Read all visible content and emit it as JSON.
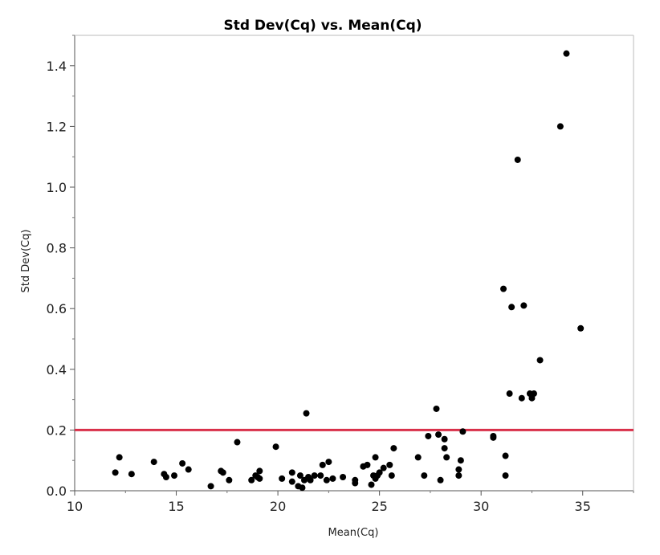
{
  "chart_data": {
    "type": "scatter",
    "title": "Std Dev(Cq) vs. Mean(Cq)",
    "xlabel": "Mean(Cq)",
    "ylabel": "Std Dev(Cq)",
    "xlim": [
      10,
      37.5
    ],
    "ylim": [
      0,
      1.5
    ],
    "x_ticks": [
      "10",
      "15",
      "20",
      "25",
      "30",
      "35"
    ],
    "y_ticks": [
      "0.0",
      "0.2",
      "0.4",
      "0.6",
      "0.8",
      "1.0",
      "1.2",
      "1.4"
    ],
    "reference_line": {
      "y": 0.2,
      "color": "#d9304a"
    },
    "point_color": "#000000",
    "grid": false,
    "points": [
      [
        12.0,
        0.06
      ],
      [
        12.2,
        0.11
      ],
      [
        12.8,
        0.055
      ],
      [
        13.9,
        0.095
      ],
      [
        14.4,
        0.055
      ],
      [
        14.5,
        0.045
      ],
      [
        14.9,
        0.05
      ],
      [
        15.3,
        0.09
      ],
      [
        15.6,
        0.07
      ],
      [
        16.7,
        0.015
      ],
      [
        17.2,
        0.065
      ],
      [
        17.3,
        0.06
      ],
      [
        17.6,
        0.035
      ],
      [
        18.0,
        0.16
      ],
      [
        18.7,
        0.035
      ],
      [
        18.9,
        0.05
      ],
      [
        19.0,
        0.045
      ],
      [
        19.1,
        0.065
      ],
      [
        19.1,
        0.04
      ],
      [
        19.9,
        0.145
      ],
      [
        20.2,
        0.04
      ],
      [
        20.7,
        0.06
      ],
      [
        20.7,
        0.03
      ],
      [
        21.0,
        0.015
      ],
      [
        21.1,
        0.05
      ],
      [
        21.2,
        0.01
      ],
      [
        21.3,
        0.035
      ],
      [
        21.4,
        0.255
      ],
      [
        21.5,
        0.045
      ],
      [
        21.6,
        0.035
      ],
      [
        21.8,
        0.05
      ],
      [
        22.1,
        0.05
      ],
      [
        22.2,
        0.085
      ],
      [
        22.4,
        0.035
      ],
      [
        22.5,
        0.095
      ],
      [
        22.7,
        0.04
      ],
      [
        23.2,
        0.045
      ],
      [
        23.8,
        0.035
      ],
      [
        23.8,
        0.025
      ],
      [
        24.2,
        0.08
      ],
      [
        24.4,
        0.085
      ],
      [
        24.6,
        0.02
      ],
      [
        24.7,
        0.05
      ],
      [
        24.8,
        0.04
      ],
      [
        24.8,
        0.11
      ],
      [
        24.9,
        0.05
      ],
      [
        25.0,
        0.06
      ],
      [
        25.2,
        0.075
      ],
      [
        25.5,
        0.085
      ],
      [
        25.6,
        0.05
      ],
      [
        25.7,
        0.14
      ],
      [
        26.9,
        0.11
      ],
      [
        27.2,
        0.05
      ],
      [
        27.4,
        0.18
      ],
      [
        27.8,
        0.27
      ],
      [
        27.9,
        0.185
      ],
      [
        28.0,
        0.035
      ],
      [
        28.2,
        0.14
      ],
      [
        28.2,
        0.17
      ],
      [
        28.3,
        0.11
      ],
      [
        28.9,
        0.05
      ],
      [
        28.9,
        0.07
      ],
      [
        29.0,
        0.1
      ],
      [
        29.1,
        0.195
      ],
      [
        30.6,
        0.18
      ],
      [
        30.6,
        0.175
      ],
      [
        31.1,
        0.665
      ],
      [
        31.2,
        0.115
      ],
      [
        31.2,
        0.05
      ],
      [
        31.4,
        0.32
      ],
      [
        31.5,
        0.605
      ],
      [
        31.8,
        1.09
      ],
      [
        32.0,
        0.305
      ],
      [
        32.1,
        0.61
      ],
      [
        32.4,
        0.32
      ],
      [
        32.5,
        0.305
      ],
      [
        32.6,
        0.32
      ],
      [
        32.9,
        0.43
      ],
      [
        33.9,
        1.2
      ],
      [
        34.2,
        1.44
      ],
      [
        34.9,
        0.535
      ]
    ]
  }
}
